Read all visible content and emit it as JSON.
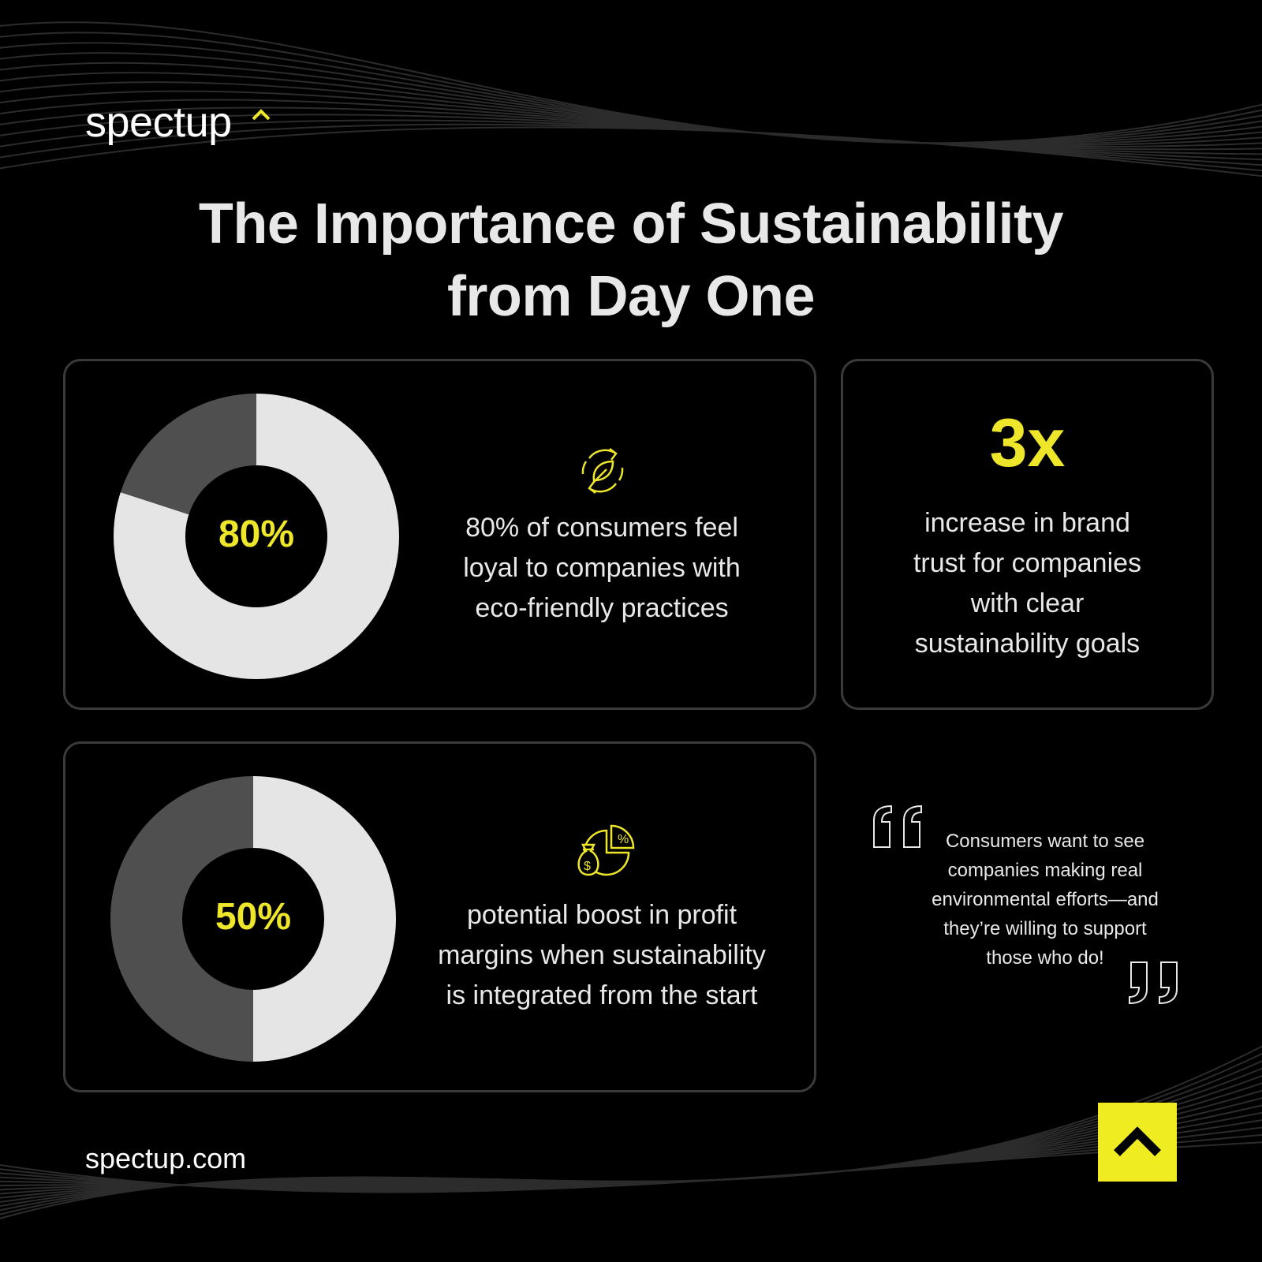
{
  "brand": {
    "name": "spectup",
    "caret_icon": "caret-up-icon",
    "url": "spectup.com"
  },
  "title": {
    "line1": "The Importance of Sustainability",
    "line2": "from Day One"
  },
  "stats": [
    {
      "value": "80%",
      "fraction": 0.8,
      "icon": "eco-cycle-leaf-icon",
      "text_lines": [
        "80% of consumers feel",
        "loyal to companies with",
        "eco-friendly practices"
      ]
    },
    {
      "value": "3x",
      "text_lines": [
        "increase in brand",
        "trust for companies",
        "with clear",
        "sustainability goals"
      ]
    },
    {
      "value": "50%",
      "fraction": 0.5,
      "icon": "money-bag-pie-chart-icon",
      "text_lines": [
        "potential boost in profit",
        "margins when sustainability",
        "is integrated from the start"
      ]
    }
  ],
  "quote": {
    "lines": [
      "Consumers want to see",
      "companies making real",
      "environmental efforts—and",
      "they’re willing to support",
      "those who do!"
    ],
    "open_icon": "open-quote-icon",
    "close_icon": "close-quote-icon"
  },
  "footer": {
    "button_icon": "chevron-up-icon"
  },
  "colors": {
    "background": "#000000",
    "accent": "#ede62b",
    "donut_fill": "#e5e5e5",
    "donut_rest": "#4f4f4f",
    "card_border": "#3a3a3a"
  }
}
